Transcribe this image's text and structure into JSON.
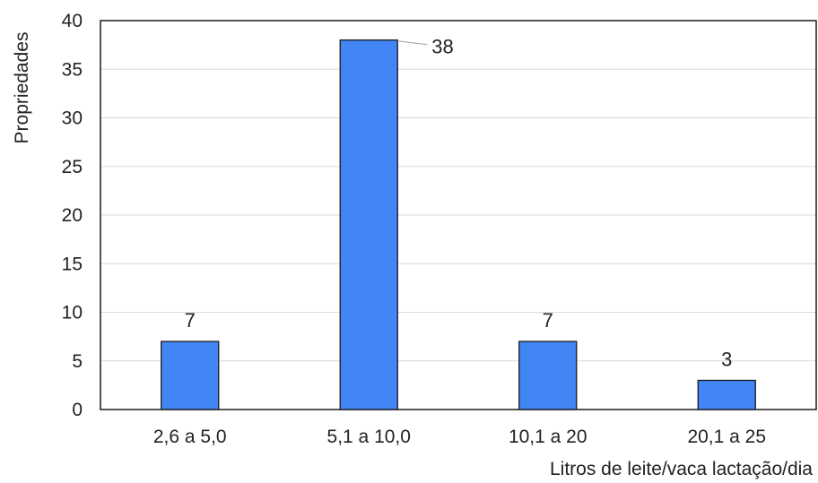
{
  "chart_data": {
    "type": "bar",
    "categories": [
      "2,6 a 5,0",
      "5,1 a 10,0",
      "10,1 a 20",
      "20,1 a 25"
    ],
    "values": [
      7,
      38,
      7,
      3
    ],
    "data_labels": [
      "7",
      "38",
      "7",
      "3"
    ],
    "title": "",
    "xlabel": "Litros de leite/vaca lactação/dia",
    "ylabel": "Propriedades",
    "ylim": [
      0,
      40
    ],
    "yticks": [
      "0",
      "5",
      "10",
      "15",
      "20",
      "25",
      "30",
      "35",
      "40"
    ],
    "grid": true,
    "legend": "none",
    "bar_color": "#4285f4",
    "bar_stroke": "#1a1a1a"
  }
}
